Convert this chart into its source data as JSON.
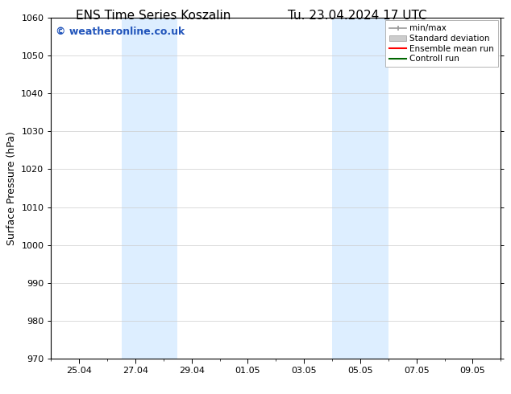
{
  "title_left": "ENS Time Series Koszalin",
  "title_right": "Tu. 23.04.2024 17 UTC",
  "ylabel": "Surface Pressure (hPa)",
  "ylim": [
    970,
    1060
  ],
  "yticks": [
    970,
    980,
    990,
    1000,
    1010,
    1020,
    1030,
    1040,
    1050,
    1060
  ],
  "xlabel_ticks": [
    "25.04",
    "27.04",
    "29.04",
    "01.05",
    "03.05",
    "05.05",
    "07.05",
    "09.05"
  ],
  "x_tick_values": [
    2,
    4,
    6,
    8,
    10,
    12,
    14,
    16
  ],
  "x_lim": [
    1,
    17
  ],
  "shaded_bands": [
    {
      "x_start": 3.5,
      "x_end": 5.5
    },
    {
      "x_start": 11.0,
      "x_end": 13.0
    }
  ],
  "shade_color": "#ddeeff",
  "background_color": "#ffffff",
  "plot_bg_color": "#ffffff",
  "watermark_text": "© weatheronline.co.uk",
  "watermark_color": "#2255bb",
  "legend_items": [
    {
      "label": "min/max",
      "color": "#999999",
      "lw": 1.2
    },
    {
      "label": "Standard deviation",
      "color": "#cccccc",
      "lw": 6
    },
    {
      "label": "Ensemble mean run",
      "color": "#ff0000",
      "lw": 1.5
    },
    {
      "label": "Controll run",
      "color": "#006600",
      "lw": 1.5
    }
  ],
  "title_fontsize": 11,
  "axis_label_fontsize": 9,
  "tick_fontsize": 8,
  "legend_fontsize": 7.5,
  "watermark_fontsize": 9,
  "grid_color": "#cccccc",
  "grid_lw": 0.5
}
